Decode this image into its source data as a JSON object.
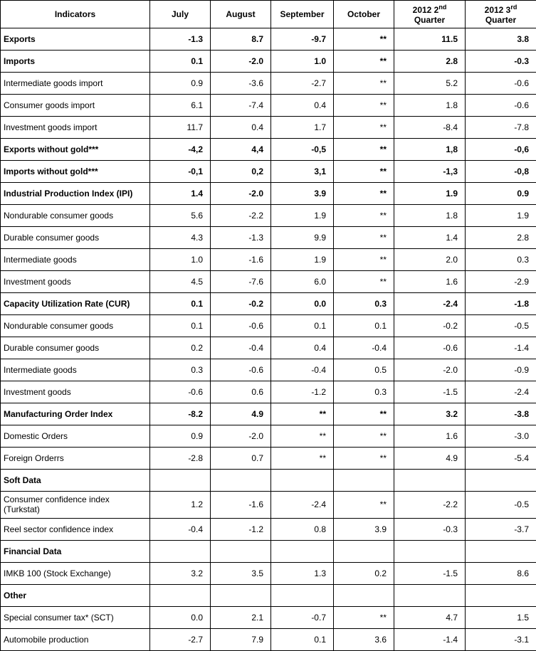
{
  "headers": {
    "indicators": "Indicators",
    "july": "July",
    "august": "August",
    "september": "September",
    "october": "October",
    "q2_pre": "2012 2",
    "q2_sup": "nd",
    "q2_post": "Quarter",
    "q3_pre": "2012 3",
    "q3_sup": "rd",
    "q3_post": "Quarter"
  },
  "rows": [
    {
      "label": "Exports",
      "v": [
        "-1.3",
        "8.7",
        "-9.7",
        "**",
        "11.5",
        "3.8"
      ],
      "bold": true
    },
    {
      "label": "Imports",
      "v": [
        "0.1",
        "-2.0",
        "1.0",
        "**",
        "2.8",
        "-0.3"
      ],
      "bold": true
    },
    {
      "label": "Intermediate goods import",
      "v": [
        "0.9",
        "-3.6",
        "-2.7",
        "**",
        "5.2",
        "-0.6"
      ]
    },
    {
      "label": "Consumer goods import",
      "v": [
        "6.1",
        "-7.4",
        "0.4",
        "**",
        "1.8",
        "-0.6"
      ]
    },
    {
      "label": "Investment goods import",
      "v": [
        "11.7",
        "0.4",
        "1.7",
        "**",
        "-8.4",
        "-7.8"
      ]
    },
    {
      "label": "Exports without gold***",
      "v": [
        "-4,2",
        "4,4",
        "-0,5",
        "**",
        "1,8",
        "-0,6"
      ],
      "bold": true
    },
    {
      "label": "Imports without gold***",
      "v": [
        "-0,1",
        "0,2",
        "3,1",
        "**",
        "-1,3",
        "-0,8"
      ],
      "bold": true
    },
    {
      "label": "Industrial Production Index (IPI)",
      "v": [
        "1.4",
        "-2.0",
        "3.9",
        "**",
        "1.9",
        "0.9"
      ],
      "bold": true
    },
    {
      "label": "Nondurable consumer goods",
      "v": [
        "5.6",
        "-2.2",
        "1.9",
        "**",
        "1.8",
        "1.9"
      ]
    },
    {
      "label": "Durable consumer goods",
      "v": [
        "4.3",
        "-1.3",
        "9.9",
        "**",
        "1.4",
        "2.8"
      ]
    },
    {
      "label": "Intermediate goods",
      "v": [
        "1.0",
        "-1.6",
        "1.9",
        "**",
        "2.0",
        "0.3"
      ]
    },
    {
      "label": "Investment goods",
      "v": [
        "4.5",
        "-7.6",
        "6.0",
        "**",
        "1.6",
        "-2.9"
      ]
    },
    {
      "label": "Capacity Utilization Rate (CUR)",
      "v": [
        "0.1",
        "-0.2",
        "0.0",
        "0.3",
        "-2.4",
        "-1.8"
      ],
      "bold": true
    },
    {
      "label": "Nondurable consumer goods",
      "v": [
        "0.1",
        "-0.6",
        "0.1",
        "0.1",
        "-0.2",
        "-0.5"
      ]
    },
    {
      "label": "Durable consumer goods",
      "v": [
        "0.2",
        "-0.4",
        "0.4",
        "-0.4",
        "-0.6",
        "-1.4"
      ]
    },
    {
      "label": "Intermediate goods",
      "v": [
        "0.3",
        "-0.6",
        "-0.4",
        "0.5",
        "-2.0",
        "-0.9"
      ]
    },
    {
      "label": "Investment goods",
      "v": [
        "-0.6",
        "0.6",
        "-1.2",
        "0.3",
        "-1.5",
        "-2.4"
      ]
    },
    {
      "label": "Manufacturing Order Index",
      "v": [
        "-8.2",
        "4.9",
        "**",
        "**",
        "3.2",
        "-3.8"
      ],
      "bold": true
    },
    {
      "label": "Domestic Orders",
      "v": [
        "0.9",
        "-2.0",
        "**",
        "**",
        "1.6",
        "-3.0"
      ]
    },
    {
      "label": "Foreign Orderrs",
      "v": [
        "-2.8",
        "0.7",
        "**",
        "**",
        "4.9",
        "-5.4"
      ]
    },
    {
      "label": "Soft Data",
      "section": true
    },
    {
      "label": "Consumer confidence index (Turkstat)",
      "v": [
        "1.2",
        "-1.6",
        "-2.4",
        "**",
        "-2.2",
        "-0.5"
      ],
      "twoline": true
    },
    {
      "label": "Reel sector confidence index",
      "v": [
        "-0.4",
        "-1.2",
        "0.8",
        "3.9",
        "-0.3",
        "-3.7"
      ]
    },
    {
      "label": "Financial Data",
      "section": true
    },
    {
      "label": "IMKB 100 (Stock Exchange)",
      "v": [
        "3.2",
        "3.5",
        "1.3",
        "0.2",
        "-1.5",
        "8.6"
      ]
    },
    {
      "label": "Other",
      "section": true
    },
    {
      "label": "Special consumer tax* (SCT)",
      "v": [
        "0.0",
        "2.1",
        "-0.7",
        "**",
        "4.7",
        "1.5"
      ]
    },
    {
      "label": "Automobile production",
      "v": [
        "-2.7",
        "7.9",
        "0.1",
        "3.6",
        "-1.4",
        "-3.1"
      ]
    }
  ],
  "colWidths": [
    "210px",
    "85px",
    "85px",
    "88px",
    "85px",
    "100px",
    "100px"
  ]
}
